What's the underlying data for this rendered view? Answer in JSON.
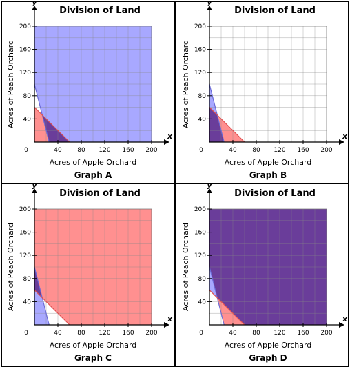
{
  "chart_data": [
    {
      "type": "area",
      "panel_label": "Graph A",
      "title": "Division of Land",
      "xlabel": "Acres of Apple Orchard",
      "ylabel": "Acres of Peach Orchard",
      "x_axis_letter": "x",
      "y_axis_letter": "y",
      "xlim": [
        0,
        200
      ],
      "ylim": [
        0,
        200
      ],
      "xticks": [
        0,
        40,
        80,
        120,
        160,
        200
      ],
      "yticks": [
        40,
        80,
        120,
        160,
        200
      ],
      "grid": true,
      "lines": [
        {
          "name": "blue",
          "points": [
            [
              0,
              100
            ],
            [
              25,
              0
            ]
          ],
          "color": "#6b6bd6"
        },
        {
          "name": "red",
          "points": [
            [
              0,
              60
            ],
            [
              60,
              0
            ]
          ],
          "color": "#e05050"
        }
      ],
      "regions": [
        {
          "polygon": [
            [
              0,
              100
            ],
            [
              25,
              0
            ],
            [
              200,
              0
            ],
            [
              200,
              200
            ],
            [
              0,
              200
            ]
          ],
          "color": "#a8a8ff"
        },
        {
          "polygon": [
            [
              0,
              60
            ],
            [
              60,
              0
            ],
            [
              0,
              0
            ]
          ],
          "color": "#ff9090"
        },
        {
          "polygon": [
            [
              13.3,
              46.7
            ],
            [
              25,
              0
            ],
            [
              60,
              0
            ]
          ],
          "color": "#6a3d9a"
        }
      ]
    },
    {
      "type": "area",
      "panel_label": "Graph B",
      "title": "Division of Land",
      "xlabel": "Acres of Apple Orchard",
      "ylabel": "Acres of Peach Orchard",
      "x_axis_letter": "x",
      "y_axis_letter": "y",
      "xlim": [
        0,
        200
      ],
      "ylim": [
        0,
        200
      ],
      "xticks": [
        0,
        40,
        80,
        120,
        160,
        200
      ],
      "yticks": [
        40,
        80,
        120,
        160,
        200
      ],
      "grid": true,
      "lines": [
        {
          "name": "blue",
          "points": [
            [
              0,
              100
            ],
            [
              25,
              0
            ]
          ],
          "color": "#6b6bd6"
        },
        {
          "name": "red",
          "points": [
            [
              0,
              60
            ],
            [
              60,
              0
            ]
          ],
          "color": "#e05050"
        }
      ],
      "regions": [
        {
          "polygon": [
            [
              0,
              100
            ],
            [
              13.3,
              46.7
            ],
            [
              0,
              60
            ]
          ],
          "color": "#a8a8ff"
        },
        {
          "polygon": [
            [
              13.3,
              46.7
            ],
            [
              25,
              0
            ],
            [
              60,
              0
            ]
          ],
          "color": "#ff9090"
        },
        {
          "polygon": [
            [
              0,
              60
            ],
            [
              13.3,
              46.7
            ],
            [
              25,
              0
            ],
            [
              0,
              0
            ]
          ],
          "color": "#6a3d9a"
        }
      ]
    },
    {
      "type": "area",
      "panel_label": "Graph C",
      "title": "Division of Land",
      "xlabel": "Acres of Apple Orchard",
      "ylabel": "Acres of Peach Orchard",
      "x_axis_letter": "x",
      "y_axis_letter": "y",
      "xlim": [
        0,
        200
      ],
      "ylim": [
        0,
        200
      ],
      "xticks": [
        0,
        40,
        80,
        120,
        160,
        200
      ],
      "yticks": [
        40,
        80,
        120,
        160,
        200
      ],
      "grid": true,
      "lines": [
        {
          "name": "blue",
          "points": [
            [
              0,
              100
            ],
            [
              25,
              0
            ]
          ],
          "color": "#6b6bd6"
        },
        {
          "name": "red",
          "points": [
            [
              0,
              60
            ],
            [
              60,
              0
            ]
          ],
          "color": "#e05050"
        }
      ],
      "regions": [
        {
          "polygon": [
            [
              0,
              60
            ],
            [
              13.3,
              46.7
            ],
            [
              25,
              0
            ],
            [
              0,
              0
            ]
          ],
          "color": "#a8a8ff"
        },
        {
          "polygon": [
            [
              13.3,
              46.7
            ],
            [
              60,
              0
            ],
            [
              200,
              0
            ],
            [
              200,
              200
            ],
            [
              0,
              200
            ],
            [
              0,
              100
            ]
          ],
          "color": "#ff9090"
        },
        {
          "polygon": [
            [
              0,
              100
            ],
            [
              13.3,
              46.7
            ],
            [
              0,
              60
            ]
          ],
          "color": "#6a3d9a"
        }
      ]
    },
    {
      "type": "area",
      "panel_label": "Graph D",
      "title": "Division of Land",
      "xlabel": "Acres of Apple Orchard",
      "ylabel": "Acres of Peach Orchard",
      "x_axis_letter": "x",
      "y_axis_letter": "y",
      "xlim": [
        0,
        200
      ],
      "ylim": [
        0,
        200
      ],
      "xticks": [
        0,
        40,
        80,
        120,
        160,
        200
      ],
      "yticks": [
        40,
        80,
        120,
        160,
        200
      ],
      "grid": true,
      "lines": [
        {
          "name": "blue",
          "points": [
            [
              0,
              100
            ],
            [
              25,
              0
            ]
          ],
          "color": "#6b6bd6"
        },
        {
          "name": "red",
          "points": [
            [
              0,
              60
            ],
            [
              60,
              0
            ]
          ],
          "color": "#e05050"
        }
      ],
      "regions": [
        {
          "polygon": [
            [
              0,
              60
            ],
            [
              13.3,
              46.7
            ],
            [
              0,
              100
            ]
          ],
          "color": "#a8a8ff"
        },
        {
          "polygon": [
            [
              13.3,
              46.7
            ],
            [
              25,
              0
            ],
            [
              60,
              0
            ]
          ],
          "color": "#ff9090"
        },
        {
          "polygon": [
            [
              0,
              100
            ],
            [
              13.3,
              46.7
            ],
            [
              60,
              0
            ],
            [
              200,
              0
            ],
            [
              200,
              200
            ],
            [
              0,
              200
            ]
          ],
          "color": "#6a3d9a"
        }
      ]
    }
  ]
}
